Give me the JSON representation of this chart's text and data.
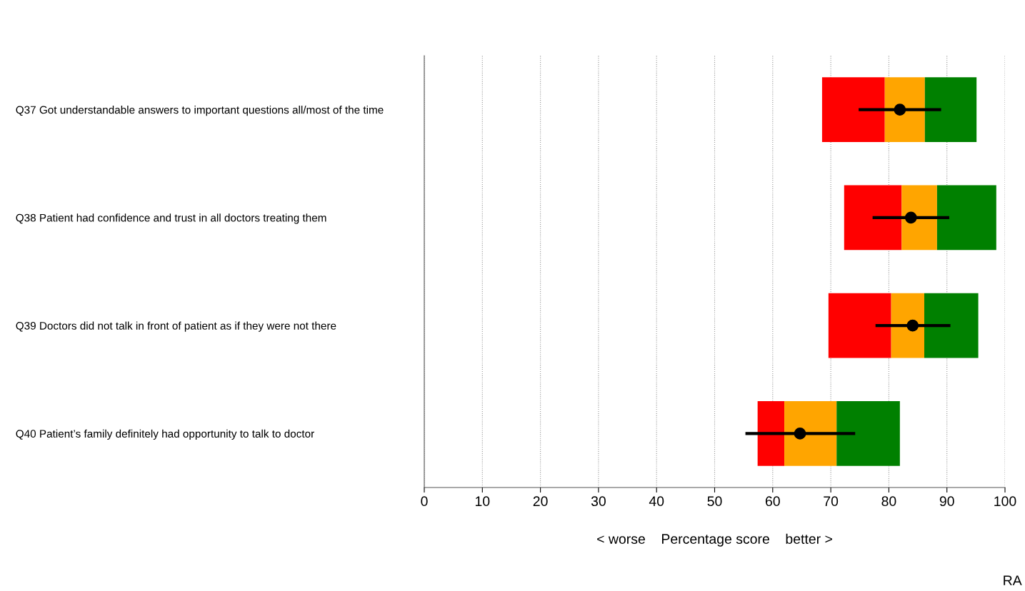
{
  "chart_data": {
    "type": "bar",
    "orientation": "horizontal",
    "categories": [
      "Q37 Got understandable answers to important questions all/most of the time",
      "Q38 Patient had confidence and trust in all doctors treating them",
      "Q39 Doctors did not talk in front of patient as if they were not there",
      "Q40 Patient’s family definitely had opportunity to talk to doctor"
    ],
    "series": [
      {
        "color": "#ff0000",
        "base": [
          68.5,
          72.3,
          69.6,
          57.4
        ],
        "values": [
          10.8,
          9.9,
          10.8,
          4.6
        ]
      },
      {
        "color": "#ffa500",
        "base": [
          79.3,
          82.2,
          80.4,
          62.0
        ],
        "values": [
          6.9,
          6.1,
          5.7,
          9.0
        ]
      },
      {
        "color": "#008000",
        "base": [
          86.2,
          88.3,
          86.1,
          71.0
        ],
        "values": [
          8.9,
          10.2,
          9.3,
          10.9
        ]
      },
      {
        "type": "scatter",
        "color": "#000000",
        "x": [
          "Q37 Got understandable answers to important questions all/most of the time",
          "Q38 Patient had confidence and trust in all doctors treating them",
          "Q39 Doctors did not talk in front of patient as if they were not there",
          "Q40 Patient’s family definitely had opportunity to talk to doctor"
        ],
        "values": [
          81.9,
          83.8,
          84.1,
          64.7
        ],
        "errors": [
          [
            74.8,
            89.0
          ],
          [
            77.2,
            90.4
          ],
          [
            77.7,
            90.6
          ],
          [
            55.3,
            74.2
          ]
        ]
      }
    ],
    "xlabel": "< worse    Percentage score    better >",
    "xlim": [
      0,
      100
    ],
    "xticks": [
      0,
      10,
      20,
      30,
      40,
      50,
      60,
      70,
      80,
      90,
      100
    ],
    "grid": "x",
    "marker": "circle",
    "annotations": [
      "RA"
    ]
  }
}
